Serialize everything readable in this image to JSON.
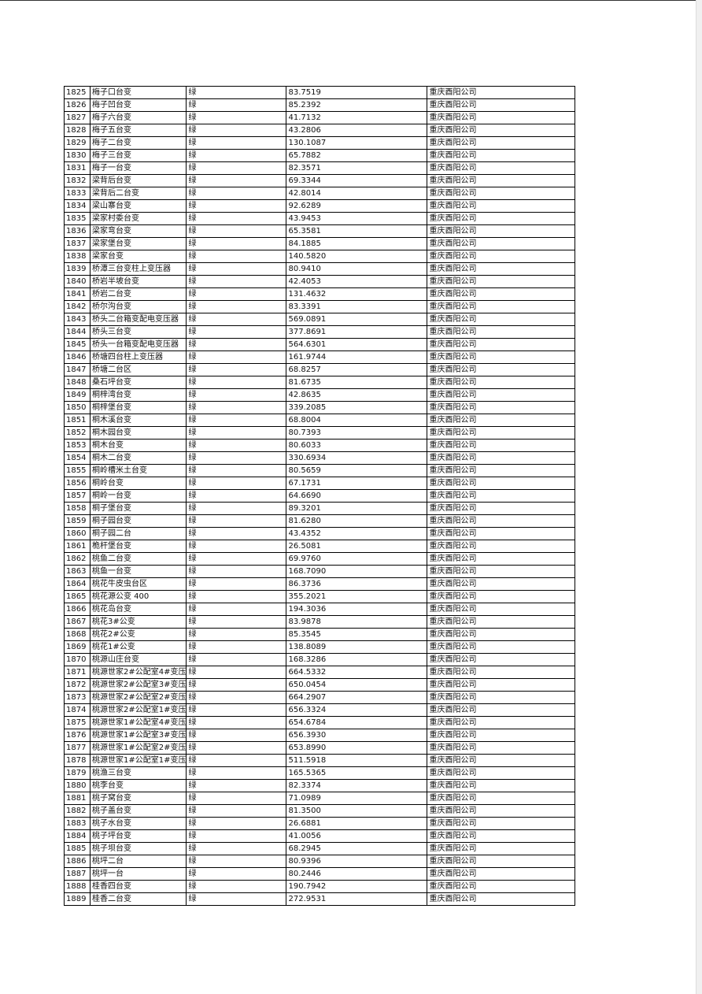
{
  "table": {
    "rows": [
      [
        "1825",
        "梅子口台变",
        "绿",
        "83.7519",
        "重庆酉阳公司"
      ],
      [
        "1826",
        "梅子凹台变",
        "绿",
        "85.2392",
        "重庆酉阳公司"
      ],
      [
        "1827",
        "梅子六台变",
        "绿",
        "41.7132",
        "重庆酉阳公司"
      ],
      [
        "1828",
        "梅子五台变",
        "绿",
        "43.2806",
        "重庆酉阳公司"
      ],
      [
        "1829",
        "梅子二台变",
        "绿",
        "130.1087",
        "重庆酉阳公司"
      ],
      [
        "1830",
        "梅子三台变",
        "绿",
        "65.7882",
        "重庆酉阳公司"
      ],
      [
        "1831",
        "梅子一台变",
        "绿",
        "82.3571",
        "重庆酉阳公司"
      ],
      [
        "1832",
        "梁背后台变",
        "绿",
        "69.3344",
        "重庆酉阳公司"
      ],
      [
        "1833",
        "梁背后二台变",
        "绿",
        "42.8014",
        "重庆酉阳公司"
      ],
      [
        "1834",
        "梁山寨台变",
        "绿",
        "92.6289",
        "重庆酉阳公司"
      ],
      [
        "1835",
        "梁家村委台变",
        "绿",
        "43.9453",
        "重庆酉阳公司"
      ],
      [
        "1836",
        "梁家弯台变",
        "绿",
        "65.3581",
        "重庆酉阳公司"
      ],
      [
        "1837",
        "梁家堡台变",
        "绿",
        "84.1885",
        "重庆酉阳公司"
      ],
      [
        "1838",
        "梁家台变",
        "绿",
        "140.5820",
        "重庆酉阳公司"
      ],
      [
        "1839",
        "桥潭三台变柱上变压器",
        "绿",
        "80.9410",
        "重庆酉阳公司"
      ],
      [
        "1840",
        "桥岩半坡台变",
        "绿",
        "42.4053",
        "重庆酉阳公司"
      ],
      [
        "1841",
        "桥岩二台变",
        "绿",
        "131.4632",
        "重庆酉阳公司"
      ],
      [
        "1842",
        "桥尔沟台变",
        "绿",
        "83.3391",
        "重庆酉阳公司"
      ],
      [
        "1843",
        "桥头二台箱变配电变压器",
        "绿",
        "569.0891",
        "重庆酉阳公司"
      ],
      [
        "1844",
        "桥头三台变",
        "绿",
        "377.8691",
        "重庆酉阳公司"
      ],
      [
        "1845",
        "桥头一台箱变配电变压器",
        "绿",
        "564.6301",
        "重庆酉阳公司"
      ],
      [
        "1846",
        "桥塘四台柱上变压器",
        "绿",
        "161.9744",
        "重庆酉阳公司"
      ],
      [
        "1847",
        "桥塘二台区",
        "绿",
        "68.8257",
        "重庆酉阳公司"
      ],
      [
        "1848",
        "桑石坪台变",
        "绿",
        "81.6735",
        "重庆酉阳公司"
      ],
      [
        "1849",
        "桐梓湾台变",
        "绿",
        "42.8635",
        "重庆酉阳公司"
      ],
      [
        "1850",
        "桐梓堡台变",
        "绿",
        "339.2085",
        "重庆酉阳公司"
      ],
      [
        "1851",
        "桐木溪台变",
        "绿",
        "68.8004",
        "重庆酉阳公司"
      ],
      [
        "1852",
        "桐木园台变",
        "绿",
        "80.7393",
        "重庆酉阳公司"
      ],
      [
        "1853",
        "桐木台变",
        "绿",
        "80.6033",
        "重庆酉阳公司"
      ],
      [
        "1854",
        "桐木二台变",
        "绿",
        "330.6934",
        "重庆酉阳公司"
      ],
      [
        "1855",
        "桐岭槽米土台变",
        "绿",
        "80.5659",
        "重庆酉阳公司"
      ],
      [
        "1856",
        "桐岭台变",
        "绿",
        "67.1731",
        "重庆酉阳公司"
      ],
      [
        "1857",
        "桐岭一台变",
        "绿",
        "64.6690",
        "重庆酉阳公司"
      ],
      [
        "1858",
        "桐子堡台变",
        "绿",
        "89.3201",
        "重庆酉阳公司"
      ],
      [
        "1859",
        "桐子园台变",
        "绿",
        "81.6280",
        "重庆酉阳公司"
      ],
      [
        "1860",
        "桐子园二台",
        "绿",
        "43.4352",
        "重庆酉阳公司"
      ],
      [
        "1861",
        "桅杆堡台变",
        "绿",
        "26.5081",
        "重庆酉阳公司"
      ],
      [
        "1862",
        "桃鱼二台变",
        "绿",
        "69.9760",
        "重庆酉阳公司"
      ],
      [
        "1863",
        "桃鱼一台变",
        "绿",
        "168.7090",
        "重庆酉阳公司"
      ],
      [
        "1864",
        "桃花牛皮虫台区",
        "绿",
        "86.3736",
        "重庆酉阳公司"
      ],
      [
        "1865",
        "桃花源公变 400",
        "绿",
        "355.2021",
        "重庆酉阳公司"
      ],
      [
        "1866",
        "桃花岛台变",
        "绿",
        "194.3036",
        "重庆酉阳公司"
      ],
      [
        "1867",
        "桃花3#公变",
        "绿",
        "83.9878",
        "重庆酉阳公司"
      ],
      [
        "1868",
        "桃花2#公变",
        "绿",
        "85.3545",
        "重庆酉阳公司"
      ],
      [
        "1869",
        "桃花1#公变",
        "绿",
        "138.8089",
        "重庆酉阳公司"
      ],
      [
        "1870",
        "桃源山庄台变",
        "绿",
        "168.3286",
        "重庆酉阳公司"
      ],
      [
        "1871",
        "桃源世家2#公配室4#变压",
        "绿",
        "664.5332",
        "重庆酉阳公司"
      ],
      [
        "1872",
        "桃源世家2#公配室3#变压",
        "绿",
        "650.0454",
        "重庆酉阳公司"
      ],
      [
        "1873",
        "桃源世家2#公配室2#变压",
        "绿",
        "664.2907",
        "重庆酉阳公司"
      ],
      [
        "1874",
        "桃源世家2#公配室1#变压",
        "绿",
        "656.3324",
        "重庆酉阳公司"
      ],
      [
        "1875",
        "桃源世家1#公配室4#变压",
        "绿",
        "654.6784",
        "重庆酉阳公司"
      ],
      [
        "1876",
        "桃源世家1#公配室3#变压",
        "绿",
        "656.3930",
        "重庆酉阳公司"
      ],
      [
        "1877",
        "桃源世家1#公配室2#变压",
        "绿",
        "653.8990",
        "重庆酉阳公司"
      ],
      [
        "1878",
        "桃源世家1#公配室1#变压",
        "绿",
        "511.5918",
        "重庆酉阳公司"
      ],
      [
        "1879",
        "桃渔三台变",
        "绿",
        "165.5365",
        "重庆酉阳公司"
      ],
      [
        "1880",
        "桃李台变",
        "绿",
        "82.3374",
        "重庆酉阳公司"
      ],
      [
        "1881",
        "桃子窝台变",
        "绿",
        "71.0989",
        "重庆酉阳公司"
      ],
      [
        "1882",
        "桃子盖台变",
        "绿",
        "81.3500",
        "重庆酉阳公司"
      ],
      [
        "1883",
        "桃子水台变",
        "绿",
        "26.6881",
        "重庆酉阳公司"
      ],
      [
        "1884",
        "桃子坪台变",
        "绿",
        "41.0056",
        "重庆酉阳公司"
      ],
      [
        "1885",
        "桃子坝台变",
        "绿",
        "68.2945",
        "重庆酉阳公司"
      ],
      [
        "1886",
        "桃坪二台",
        "绿",
        "80.9396",
        "重庆酉阳公司"
      ],
      [
        "1887",
        "桃坪一台",
        "绿",
        "80.2446",
        "重庆酉阳公司"
      ],
      [
        "1888",
        "桂香四台变",
        "绿",
        "190.7942",
        "重庆酉阳公司"
      ],
      [
        "1889",
        "桂香二台变",
        "绿",
        "272.9531",
        "重庆酉阳公司"
      ]
    ]
  }
}
